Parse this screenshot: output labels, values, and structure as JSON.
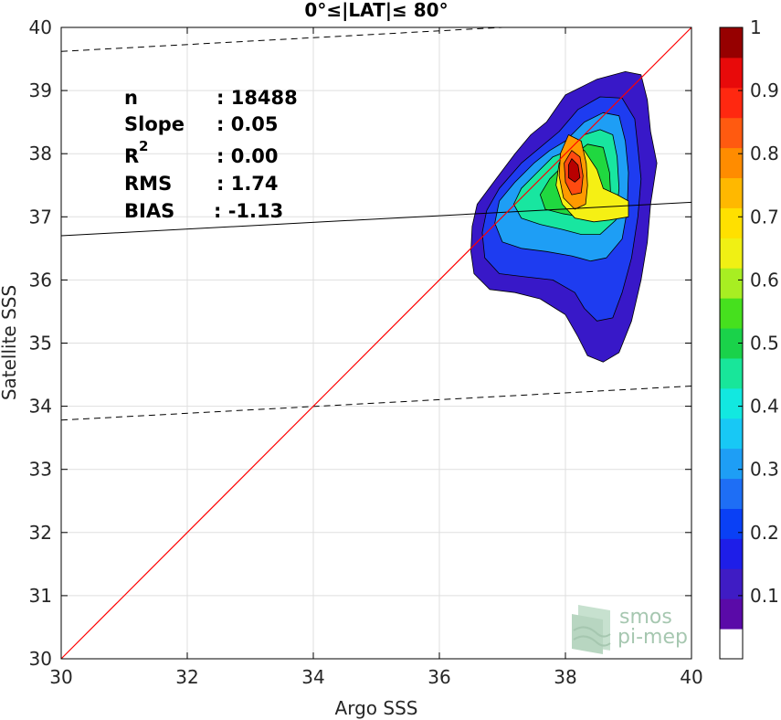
{
  "chart_data": {
    "type": "contour-density-scatter",
    "title": "0°≤|LAT|≤ 80°",
    "xlabel": "Argo SSS",
    "ylabel": "Satellite SSS",
    "xlim": [
      30,
      40
    ],
    "ylim": [
      30,
      40
    ],
    "xticks": [
      "30",
      "32",
      "34",
      "36",
      "38",
      "40"
    ],
    "yticks": [
      "30",
      "31",
      "32",
      "33",
      "34",
      "35",
      "36",
      "37",
      "38",
      "39",
      "40"
    ],
    "grid": true,
    "stats": [
      {
        "label": "n",
        "value": ": 18488"
      },
      {
        "label": "Slope",
        "value": ": 0.05"
      },
      {
        "label": "R",
        "sup": "2",
        "value": ": 0.00"
      },
      {
        "label": "RMS",
        "value": ": 1.74"
      },
      {
        "label": "BIAS",
        "value": ": -1.13"
      }
    ],
    "identity_line": {
      "x": [
        30,
        40
      ],
      "y": [
        30,
        40
      ],
      "color": "#ff0000"
    },
    "regression_line": {
      "x": [
        30,
        40
      ],
      "y": [
        36.7,
        37.23
      ],
      "color": "#000000"
    },
    "upper_bound_line": {
      "x": [
        30,
        37.0
      ],
      "y": [
        39.62,
        40.0
      ],
      "style": "dashed"
    },
    "lower_bound_line": {
      "x": [
        30,
        40
      ],
      "y": [
        33.78,
        34.32
      ],
      "style": "dashed"
    },
    "colorbar": {
      "ticks": [
        "0.1",
        "0.2",
        "0.3",
        "0.4",
        "0.5",
        "0.6",
        "0.7",
        "0.8",
        "0.9",
        "1"
      ],
      "range": [
        0,
        1
      ],
      "levels": [
        "#ffffff",
        "#5a0aa8",
        "#3f1cc4",
        "#1e1ee8",
        "#0a40f5",
        "#1e6ef5",
        "#1e9ef5",
        "#18c8f5",
        "#12e8e0",
        "#18e69a",
        "#1ad24a",
        "#46e01e",
        "#a8ee22",
        "#f0f014",
        "#ffe000",
        "#ffb800",
        "#ff8c00",
        "#ff5a10",
        "#ff2810",
        "#e80a0a",
        "#960000"
      ]
    },
    "contours": [
      {
        "level": 0.05,
        "color": "#3818c8",
        "points": [
          [
            37.7,
            38.5
          ],
          [
            38.0,
            38.93
          ],
          [
            38.5,
            39.18
          ],
          [
            38.95,
            39.3
          ],
          [
            39.2,
            39.25
          ],
          [
            39.3,
            38.85
          ],
          [
            39.35,
            38.35
          ],
          [
            39.45,
            37.85
          ],
          [
            39.35,
            37.2
          ],
          [
            39.3,
            36.6
          ],
          [
            39.2,
            36.0
          ],
          [
            39.05,
            35.35
          ],
          [
            38.85,
            34.85
          ],
          [
            38.6,
            34.7
          ],
          [
            38.35,
            34.8
          ],
          [
            38.2,
            35.1
          ],
          [
            38.0,
            35.45
          ],
          [
            37.6,
            35.7
          ],
          [
            37.2,
            35.8
          ],
          [
            36.8,
            35.85
          ],
          [
            36.55,
            36.1
          ],
          [
            36.5,
            36.45
          ],
          [
            36.52,
            36.85
          ],
          [
            36.6,
            37.2
          ],
          [
            36.9,
            37.6
          ],
          [
            37.2,
            38.0
          ],
          [
            37.45,
            38.3
          ]
        ]
      },
      {
        "level": 0.15,
        "color": "#1e3cf0",
        "points": [
          [
            37.9,
            38.35
          ],
          [
            38.2,
            38.7
          ],
          [
            38.55,
            38.9
          ],
          [
            38.9,
            38.88
          ],
          [
            39.1,
            38.55
          ],
          [
            39.15,
            38.1
          ],
          [
            39.2,
            37.6
          ],
          [
            39.15,
            37.0
          ],
          [
            39.05,
            36.35
          ],
          [
            38.9,
            35.8
          ],
          [
            38.75,
            35.4
          ],
          [
            38.5,
            35.35
          ],
          [
            38.3,
            35.55
          ],
          [
            38.15,
            35.8
          ],
          [
            37.8,
            36.0
          ],
          [
            37.35,
            36.05
          ],
          [
            36.95,
            36.1
          ],
          [
            36.72,
            36.35
          ],
          [
            36.68,
            36.75
          ],
          [
            36.75,
            37.1
          ],
          [
            36.95,
            37.45
          ],
          [
            37.3,
            37.85
          ],
          [
            37.6,
            38.1
          ]
        ]
      },
      {
        "level": 0.3,
        "color": "#1e9ef5",
        "points": [
          [
            38.0,
            38.2
          ],
          [
            38.3,
            38.5
          ],
          [
            38.6,
            38.65
          ],
          [
            38.85,
            38.6
          ],
          [
            38.95,
            38.2
          ],
          [
            39.0,
            37.7
          ],
          [
            38.98,
            37.1
          ],
          [
            38.9,
            36.65
          ],
          [
            38.65,
            36.35
          ],
          [
            38.4,
            36.3
          ],
          [
            38.1,
            36.38
          ],
          [
            37.7,
            36.45
          ],
          [
            37.3,
            36.5
          ],
          [
            37.0,
            36.6
          ],
          [
            36.88,
            36.9
          ],
          [
            36.95,
            37.25
          ],
          [
            37.2,
            37.55
          ],
          [
            37.5,
            37.85
          ],
          [
            37.75,
            38.05
          ]
        ]
      },
      {
        "level": 0.45,
        "color": "#18e6a0",
        "points": [
          [
            38.05,
            38.05
          ],
          [
            38.3,
            38.3
          ],
          [
            38.55,
            38.38
          ],
          [
            38.75,
            38.3
          ],
          [
            38.82,
            37.95
          ],
          [
            38.85,
            37.45
          ],
          [
            38.8,
            36.95
          ],
          [
            38.55,
            36.72
          ],
          [
            38.25,
            36.72
          ],
          [
            37.95,
            36.8
          ],
          [
            37.6,
            36.88
          ],
          [
            37.3,
            36.98
          ],
          [
            37.18,
            37.2
          ],
          [
            37.3,
            37.45
          ],
          [
            37.55,
            37.7
          ],
          [
            37.8,
            37.95
          ]
        ]
      },
      {
        "level": 0.55,
        "color": "#20d840",
        "points": [
          [
            38.1,
            37.95
          ],
          [
            38.35,
            38.15
          ],
          [
            38.6,
            38.1
          ],
          [
            38.7,
            37.7
          ],
          [
            38.72,
            37.3
          ],
          [
            38.55,
            37.05
          ],
          [
            38.25,
            37.0
          ],
          [
            37.95,
            37.05
          ],
          [
            37.68,
            37.12
          ],
          [
            37.6,
            37.35
          ],
          [
            37.75,
            37.6
          ],
          [
            37.95,
            37.8
          ]
        ]
      },
      {
        "level": 0.65,
        "color": "#f5f014",
        "points": [
          [
            38.05,
            38.1
          ],
          [
            38.3,
            38.05
          ],
          [
            38.5,
            37.75
          ],
          [
            38.6,
            37.45
          ],
          [
            38.82,
            37.35
          ],
          [
            39.0,
            37.25
          ],
          [
            39.0,
            37.0
          ],
          [
            38.7,
            36.95
          ],
          [
            38.45,
            36.92
          ],
          [
            38.15,
            36.98
          ],
          [
            37.95,
            37.2
          ],
          [
            37.85,
            37.5
          ],
          [
            37.9,
            37.85
          ]
        ]
      },
      {
        "level": 0.75,
        "color": "#ff9a00",
        "points": [
          [
            38.05,
            38.3
          ],
          [
            38.25,
            38.2
          ],
          [
            38.33,
            37.85
          ],
          [
            38.35,
            37.5
          ],
          [
            38.32,
            37.2
          ],
          [
            38.15,
            37.12
          ],
          [
            37.97,
            37.3
          ],
          [
            37.9,
            37.65
          ],
          [
            37.92,
            38.0
          ]
        ]
      },
      {
        "level": 0.85,
        "color": "#ff4a10",
        "points": [
          [
            38.1,
            38.05
          ],
          [
            38.23,
            37.95
          ],
          [
            38.28,
            37.65
          ],
          [
            38.25,
            37.38
          ],
          [
            38.1,
            37.35
          ],
          [
            38.0,
            37.55
          ],
          [
            37.98,
            37.85
          ]
        ]
      },
      {
        "level": 0.95,
        "color": "#b80000",
        "points": [
          [
            38.1,
            37.92
          ],
          [
            38.2,
            37.82
          ],
          [
            38.23,
            37.62
          ],
          [
            38.15,
            37.55
          ],
          [
            38.05,
            37.62
          ],
          [
            38.05,
            37.82
          ]
        ]
      }
    ]
  }
}
